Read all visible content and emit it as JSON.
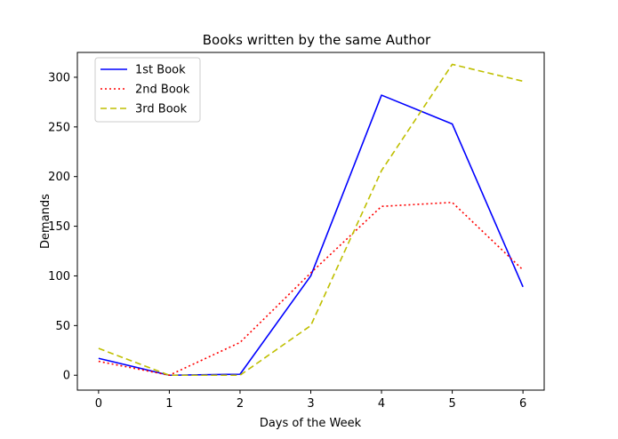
{
  "chart_data": {
    "type": "line",
    "title": "Books written by the same Author",
    "xlabel": "Days of the Week",
    "ylabel": "Demands",
    "x": [
      0,
      1,
      2,
      3,
      4,
      5,
      6
    ],
    "xlim": [
      -0.3,
      6.3
    ],
    "ylim": [
      -15,
      325
    ],
    "xticks": [
      0,
      1,
      2,
      3,
      4,
      5,
      6
    ],
    "yticks": [
      0,
      50,
      100,
      150,
      200,
      250,
      300
    ],
    "grid": false,
    "legend_position": "top-left",
    "series": [
      {
        "name": "1st Book",
        "color": "#0000ff",
        "style": "solid",
        "values": [
          17,
          0,
          1,
          100,
          282,
          253,
          89
        ]
      },
      {
        "name": "2nd Book",
        "color": "#ff0000",
        "style": "dotted",
        "values": [
          14,
          0,
          33,
          103,
          170,
          174,
          106
        ]
      },
      {
        "name": "3rd Book",
        "color": "#bfbf00",
        "style": "dashed",
        "values": [
          27,
          0,
          0,
          50,
          206,
          313,
          296
        ]
      }
    ]
  }
}
